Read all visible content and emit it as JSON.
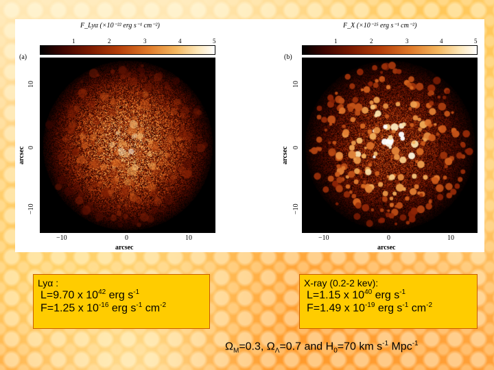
{
  "panel_a": {
    "letter": "(a)",
    "colorbar_label": "F_Lyα (×10⁻²² erg s⁻¹ cm⁻²)",
    "colorbar_ticks": [
      "1",
      "2",
      "3",
      "4",
      "5"
    ],
    "x_ticks": [
      "−10",
      "0",
      "10"
    ],
    "y_ticks": [
      "10",
      "0",
      "−10"
    ],
    "xlabel": "arcsec",
    "ylabel": "arcsec",
    "seed": 7,
    "density": 0.62
  },
  "panel_b": {
    "letter": "(b)",
    "colorbar_label": "F_X (×10⁻²⁵ erg s⁻¹ cm⁻²)",
    "colorbar_ticks": [
      "1",
      "2",
      "3",
      "4",
      "5"
    ],
    "x_ticks": [
      "−10",
      "0",
      "10"
    ],
    "y_ticks": [
      "10",
      "0",
      "−10"
    ],
    "xlabel": "arcsec",
    "ylabel": "arcsec",
    "seed": 19,
    "density": 0.42
  },
  "box_lya": {
    "title": "Ly",
    "alpha_symbol": "α",
    "title_suffix": " :",
    "l_prefix": "L=9.70 x 10",
    "l_exp": "42",
    "l_suffix": " erg s",
    "l_unit_exp": "-1",
    "f_prefix": "F=1.25 x 10",
    "f_exp": "-16",
    "f_mid": " erg s",
    "f_s_exp": "-1",
    "f_cm": " cm",
    "f_cm_exp": "-2"
  },
  "box_xray": {
    "title": "X-ray (0.2-2 kev):",
    "l_prefix": "L=1.15 x 10",
    "l_exp": "40",
    "l_suffix": " erg s",
    "l_unit_exp": "-1",
    "f_prefix": "F=1.49 x 10",
    "f_exp": "-19",
    "f_mid": " erg s",
    "f_s_exp": "-1",
    "f_cm": " cm",
    "f_cm_exp": "-2"
  },
  "cosmology": {
    "omega_m": "Ω",
    "omega_m_sub": "M",
    "omega_m_val": "=0.3, ",
    "omega_l": "Ω",
    "omega_l_sub": "Λ",
    "omega_l_val": "=0.7 and H",
    "h_sub": "0",
    "h_val": "=70 km s",
    "s_exp": "-1",
    "mpc": " Mpc",
    "mpc_exp": "-1"
  },
  "colors": {
    "box_fill": "#ffcc00",
    "box_border": "#c85a00"
  }
}
